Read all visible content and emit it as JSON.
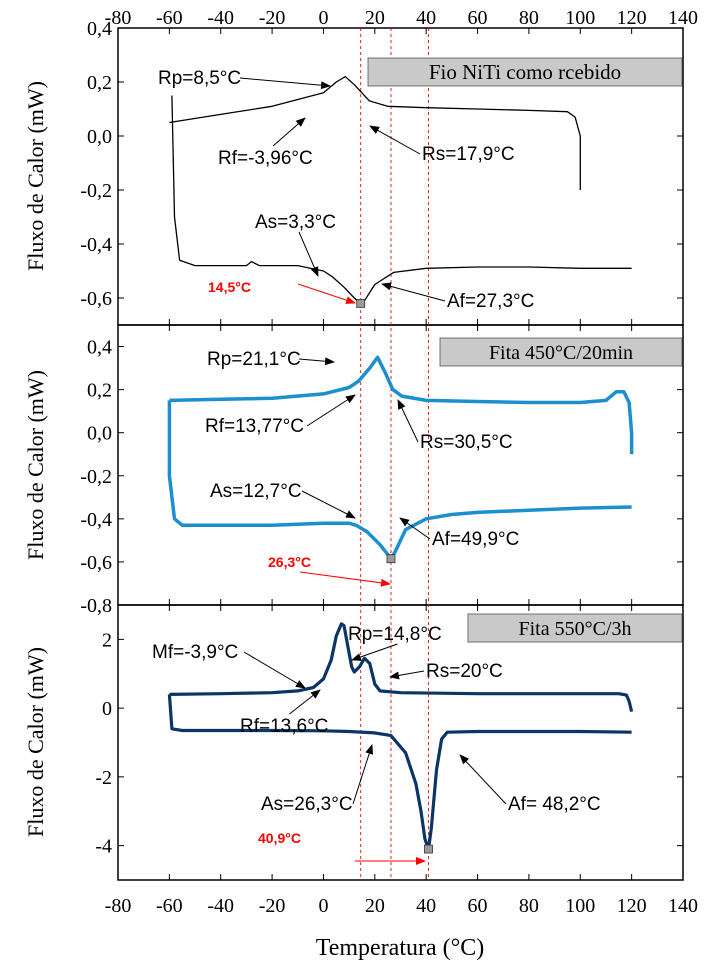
{
  "xlabel": "Temperatura (°C)",
  "x_ticks": [
    -80,
    -60,
    -40,
    -20,
    0,
    20,
    40,
    60,
    80,
    100,
    120,
    140
  ],
  "xlim": [
    -80,
    140
  ],
  "colors": {
    "panel1": "#000000",
    "panel2": "#1b8fcf",
    "panel3": "#0b3566",
    "marker": "#ff0000",
    "title_box": "#c9c9c9"
  },
  "chart_data": [
    {
      "type": "line",
      "title": "Fio NiTi como rcebido",
      "ylabel": "Fluxo de Calor (mW)",
      "ylim": [
        -0.7,
        0.4
      ],
      "y_ticks": [
        "0,4",
        "0,2",
        "0,0",
        "-0,2",
        "-0,4",
        "-0,6"
      ],
      "y_tick_values": [
        0.4,
        0.2,
        0.0,
        -0.2,
        -0.4,
        -0.6
      ],
      "series": [
        {
          "values_note": "cooling",
          "x": [
            -60,
            -40,
            -20,
            0,
            5,
            8.5,
            12,
            17.9,
            25,
            40,
            60,
            80,
            95,
            98,
            100,
            100
          ],
          "y": [
            0.05,
            0.08,
            0.11,
            0.16,
            0.2,
            0.22,
            0.19,
            0.13,
            0.11,
            0.105,
            0.1,
            0.095,
            0.09,
            0.07,
            0.0,
            -0.2
          ]
        },
        {
          "values_note": "heating",
          "x": [
            -59,
            -58,
            -56,
            -50,
            -40,
            -30,
            -28,
            -25,
            -10,
            0,
            3.3,
            8,
            12,
            14.5,
            16,
            20,
            27.3,
            40,
            60,
            80,
            100,
            120
          ],
          "y": [
            0.15,
            -0.3,
            -0.46,
            -0.48,
            -0.48,
            -0.48,
            -0.465,
            -0.48,
            -0.48,
            -0.5,
            -0.52,
            -0.56,
            -0.6,
            -0.62,
            -0.61,
            -0.55,
            -0.505,
            -0.49,
            -0.485,
            -0.485,
            -0.49,
            -0.49
          ]
        }
      ],
      "annotations": [
        "Rp=8,5°C",
        "Rf=-3,96°C",
        "Rs=17,9°C",
        "As=3,3°C",
        "Af=27,3°C"
      ],
      "annotation_points": [
        [
          8.5,
          0.22
        ],
        [
          -3.96,
          0.15
        ],
        [
          17.9,
          0.13
        ],
        [
          3.3,
          -0.52
        ],
        [
          27.3,
          -0.505
        ]
      ],
      "marker_label": "14,5°C",
      "marker_x": 14.5,
      "marker_y": -0.62
    },
    {
      "type": "line",
      "title": "Fita 450°C/20min",
      "ylabel": "Fluxo de Calor (mW)",
      "ylim": [
        -0.8,
        0.5
      ],
      "y_ticks": [
        "0,4",
        "0,2",
        "0,0",
        "-0,2",
        "-0,4",
        "-0,6",
        "-0,8"
      ],
      "y_tick_values": [
        0.4,
        0.2,
        0.0,
        -0.2,
        -0.4,
        -0.6,
        -0.8
      ],
      "series": [
        {
          "values_note": "cooling",
          "x": [
            -60,
            -40,
            -20,
            0,
            10,
            13.77,
            18,
            21.1,
            24,
            27,
            30.5,
            40,
            60,
            80,
            100,
            110,
            114,
            117,
            119,
            120,
            120
          ],
          "y": [
            0.15,
            0.155,
            0.16,
            0.18,
            0.21,
            0.24,
            0.3,
            0.35,
            0.28,
            0.2,
            0.17,
            0.15,
            0.145,
            0.14,
            0.14,
            0.15,
            0.19,
            0.19,
            0.14,
            0.0,
            -0.1
          ]
        },
        {
          "values_note": "heating",
          "x": [
            -60,
            -60,
            -58,
            -55,
            -40,
            -20,
            0,
            10,
            12.7,
            17,
            22,
            26.3,
            28,
            32,
            40,
            49.9,
            60,
            80,
            100,
            120
          ],
          "y": [
            0.15,
            -0.2,
            -0.4,
            -0.43,
            -0.43,
            -0.43,
            -0.42,
            -0.42,
            -0.43,
            -0.46,
            -0.52,
            -0.585,
            -0.55,
            -0.45,
            -0.4,
            -0.38,
            -0.37,
            -0.36,
            -0.35,
            -0.345
          ]
        }
      ],
      "annotations": [
        "Rp=21,1°C",
        "Rf=13,77°C",
        "Rs=30,5°C",
        "As=12,7°C",
        "Af=49,9°C"
      ],
      "annotation_points": [
        [
          21.1,
          0.35
        ],
        [
          13.77,
          0.24
        ],
        [
          30.5,
          0.17
        ],
        [
          12.7,
          -0.43
        ],
        [
          49.9,
          -0.38
        ]
      ],
      "marker_label": "26,3°C",
      "marker_x": 26.3,
      "marker_y": -0.585
    },
    {
      "type": "line",
      "title": "Fita 550°C/3h",
      "ylabel": "Fluxo de Calor (mW)",
      "ylim": [
        -5,
        3
      ],
      "y_ticks": [
        "2",
        "0",
        "-2",
        "-4"
      ],
      "y_tick_values": [
        2,
        0,
        -2,
        -4
      ],
      "series": [
        {
          "values_note": "cooling",
          "x": [
            -60,
            -40,
            -20,
            -10,
            -3.9,
            0,
            3,
            5,
            7,
            8,
            10,
            11,
            12,
            14,
            16,
            18,
            20,
            22,
            30,
            60,
            80,
            100,
            115,
            118,
            119,
            120
          ],
          "y": [
            0.4,
            0.42,
            0.45,
            0.5,
            0.6,
            0.85,
            1.4,
            2.1,
            2.45,
            2.4,
            1.6,
            1.2,
            1.05,
            1.2,
            1.45,
            1.3,
            0.7,
            0.5,
            0.45,
            0.42,
            0.42,
            0.42,
            0.42,
            0.38,
            0.2,
            -0.1
          ]
        },
        {
          "values_note": "heating",
          "x": [
            -60,
            -59,
            -55,
            -40,
            -20,
            0,
            10,
            20,
            26.3,
            32,
            36,
            38,
            39.5,
            40.9,
            42,
            44,
            46,
            48.2,
            60,
            80,
            100,
            120
          ],
          "y": [
            0.4,
            -0.6,
            -0.65,
            -0.65,
            -0.65,
            -0.66,
            -0.68,
            -0.72,
            -0.8,
            -1.3,
            -2.2,
            -3.0,
            -3.8,
            -4.1,
            -3.5,
            -1.8,
            -0.9,
            -0.7,
            -0.68,
            -0.68,
            -0.68,
            -0.7
          ]
        }
      ],
      "annotations": [
        "Mf=-3,9°C",
        "Rp=14,8°C",
        "Rf=13,6°C",
        "Rs=20°C",
        "As=26,3°C",
        "Af= 48,2°C"
      ],
      "annotation_points": [
        [
          -3.9,
          0.6
        ],
        [
          14.8,
          1.45
        ],
        [
          13.6,
          1.05
        ],
        [
          20,
          0.7
        ],
        [
          26.3,
          -0.8
        ],
        [
          48.2,
          -0.7
        ]
      ],
      "marker_label": "40,9°C",
      "marker_x": 40.9,
      "marker_y": -4.1
    }
  ]
}
